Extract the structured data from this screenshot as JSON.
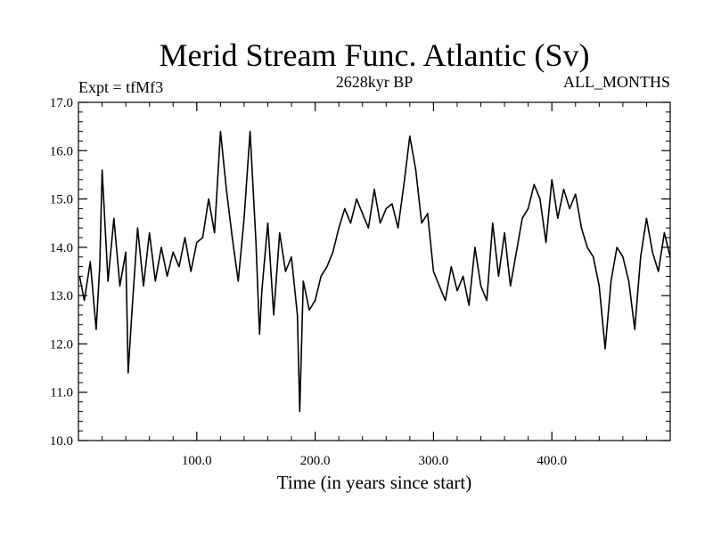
{
  "chart_data": {
    "type": "line",
    "title": "Merid Stream Func. Atlantic (Sv)",
    "subtitle_left": "Expt = tfMf3",
    "subtitle_center": "2628kyr BP",
    "subtitle_right": "ALL_MONTHS",
    "xlabel": "Time (in years since start)",
    "ylabel": "",
    "xlim": [
      0,
      500
    ],
    "ylim": [
      10.0,
      17.0
    ],
    "xticks": [
      100,
      200,
      300,
      400
    ],
    "xtick_labels": [
      "100.0",
      "200.0",
      "300.0",
      "400.0"
    ],
    "yticks": [
      10,
      11,
      12,
      13,
      14,
      15,
      16,
      17
    ],
    "ytick_labels": [
      "10.0",
      "11.0",
      "12.0",
      "13.0",
      "14.0",
      "15.0",
      "16.0",
      "17.0"
    ],
    "series": [
      {
        "name": "tfMf3",
        "x": [
          1,
          5,
          10,
          15,
          18,
          20,
          25,
          30,
          35,
          40,
          42,
          45,
          50,
          55,
          60,
          65,
          70,
          75,
          80,
          85,
          90,
          95,
          100,
          105,
          110,
          115,
          120,
          125,
          130,
          135,
          140,
          145,
          150,
          153,
          155,
          160,
          165,
          170,
          175,
          180,
          185,
          187,
          190,
          195,
          200,
          205,
          210,
          215,
          220,
          225,
          230,
          235,
          240,
          245,
          250,
          255,
          260,
          265,
          270,
          275,
          280,
          285,
          290,
          295,
          300,
          305,
          310,
          315,
          320,
          325,
          330,
          335,
          340,
          345,
          350,
          355,
          360,
          365,
          370,
          375,
          380,
          385,
          390,
          395,
          400,
          405,
          410,
          415,
          420,
          425,
          430,
          435,
          440,
          445,
          450,
          455,
          460,
          465,
          470,
          475,
          480,
          485,
          490,
          495,
          500
        ],
        "values": [
          13.4,
          12.9,
          13.7,
          12.3,
          13.6,
          15.6,
          13.3,
          14.6,
          13.2,
          13.9,
          11.4,
          12.6,
          14.4,
          13.2,
          14.3,
          13.3,
          14.0,
          13.4,
          13.9,
          13.6,
          14.2,
          13.5,
          14.1,
          14.2,
          15.0,
          14.3,
          16.4,
          15.2,
          14.2,
          13.3,
          14.6,
          16.4,
          14.1,
          12.2,
          13.1,
          14.5,
          12.6,
          14.3,
          13.5,
          13.8,
          12.6,
          10.6,
          13.3,
          12.7,
          12.9,
          13.4,
          13.6,
          13.9,
          14.4,
          14.8,
          14.5,
          15.0,
          14.7,
          14.4,
          15.2,
          14.5,
          14.8,
          14.9,
          14.4,
          15.3,
          16.3,
          15.6,
          14.5,
          14.7,
          13.5,
          13.2,
          12.9,
          13.6,
          13.1,
          13.4,
          12.8,
          14.0,
          13.2,
          12.9,
          14.5,
          13.4,
          14.3,
          13.2,
          13.9,
          14.6,
          14.8,
          15.3,
          15.0,
          14.1,
          15.4,
          14.6,
          15.2,
          14.8,
          15.1,
          14.4,
          14.0,
          13.8,
          13.2,
          11.9,
          13.3,
          14.0,
          13.8,
          13.3,
          12.3,
          13.8,
          14.6,
          13.9,
          13.5,
          14.3,
          13.8
        ]
      }
    ]
  }
}
